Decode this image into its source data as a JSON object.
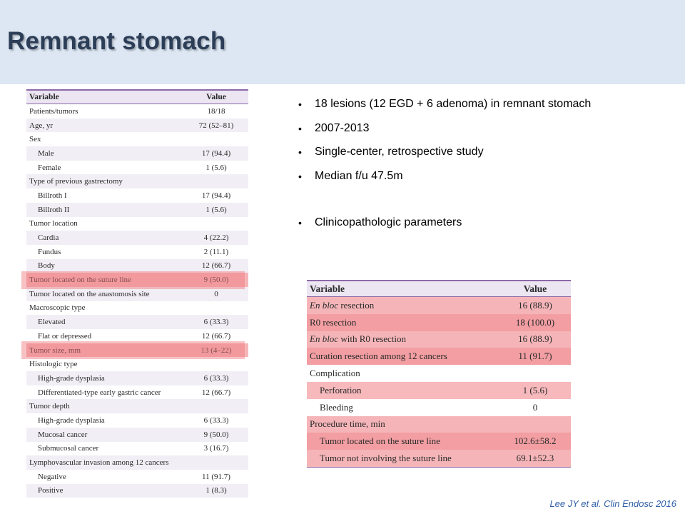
{
  "slide": {
    "title": "Remnant stomach",
    "citation": "Lee JY et al. Clin Endosc 2016"
  },
  "bullets": [
    "18 lesions (12  EGD + 6 adenoma) in remnant stomach",
    "2007-2013",
    "Single-center, retrospective study",
    "Median f/u 47.5m",
    "Clinicopathologic parameters"
  ],
  "table_left": {
    "headers": [
      "Variable",
      "Value"
    ],
    "rows": [
      {
        "label": "Patients/tumors",
        "value": "18/18"
      },
      {
        "label": "Age, yr",
        "value": "72 (52–81)"
      },
      {
        "label": "Sex",
        "value": ""
      },
      {
        "label": "Male",
        "value": "17 (94.4)"
      },
      {
        "label": "Female",
        "value": "1 (5.6)"
      },
      {
        "label": "Type of previous gastrectomy",
        "value": ""
      },
      {
        "label": "Billroth I",
        "value": "17 (94.4)"
      },
      {
        "label": "Billroth II",
        "value": "1 (5.6)"
      },
      {
        "label": "Tumor location",
        "value": ""
      },
      {
        "label": "Cardia",
        "value": "4 (22.2)"
      },
      {
        "label": "Fundus",
        "value": "2 (11.1)"
      },
      {
        "label": "Body",
        "value": "12 (66.7)"
      },
      {
        "label": "Tumor located on the suture line",
        "value": "9 (50.0)"
      },
      {
        "label": "Tumor located on the anastomosis site",
        "value": "0"
      },
      {
        "label": "Macroscopic type",
        "value": ""
      },
      {
        "label": "Elevated",
        "value": "6 (33.3)"
      },
      {
        "label": "Flat or depressed",
        "value": "12 (66.7)"
      },
      {
        "label": "Tumor size, mm",
        "value": "13 (4–22)"
      },
      {
        "label": "Histologic type",
        "value": ""
      },
      {
        "label": "High-grade dysplasia",
        "value": "6 (33.3)"
      },
      {
        "label": "Differentiated-type early gastric cancer",
        "value": "12 (66.7)"
      },
      {
        "label": "Tumor depth",
        "value": ""
      },
      {
        "label": "High-grade dysplasia",
        "value": "6 (33.3)"
      },
      {
        "label": "Mucosal cancer",
        "value": "9 (50.0)"
      },
      {
        "label": "Submucosal cancer",
        "value": "3 (16.7)"
      },
      {
        "label": "Lymphovascular invasion among 12 cancers",
        "value": ""
      },
      {
        "label": "Negative",
        "value": "11 (91.7)"
      },
      {
        "label": "Positive",
        "value": "1 (8.3)"
      }
    ]
  },
  "table_right": {
    "headers": [
      "Variable",
      "Value"
    ],
    "rows": [
      {
        "label_italic": "En bloc",
        "label": " resection",
        "value": "16 (88.9)"
      },
      {
        "label_italic": "",
        "label": "R0 resection",
        "value": "18 (100.0)"
      },
      {
        "label_italic": "En bloc",
        "label": " with R0 resection",
        "value": "16 (88.9)"
      },
      {
        "label_italic": "",
        "label": "Curation resection among 12 cancers",
        "value": "11 (91.7)"
      },
      {
        "label_italic": "",
        "label": "Complication",
        "value": ""
      },
      {
        "label_italic": "",
        "label": "Perforation",
        "value": "1 (5.6)"
      },
      {
        "label_italic": "",
        "label": "Bleeding",
        "value": "0"
      },
      {
        "label_italic": "",
        "label": "Procedure time, min",
        "value": ""
      },
      {
        "label_italic": "",
        "label": "Tumor located on the suture line",
        "value": "102.6±58.2"
      },
      {
        "label_italic": "",
        "label": "Tumor not involving the suture line",
        "value": "69.1±52.3"
      }
    ]
  }
}
